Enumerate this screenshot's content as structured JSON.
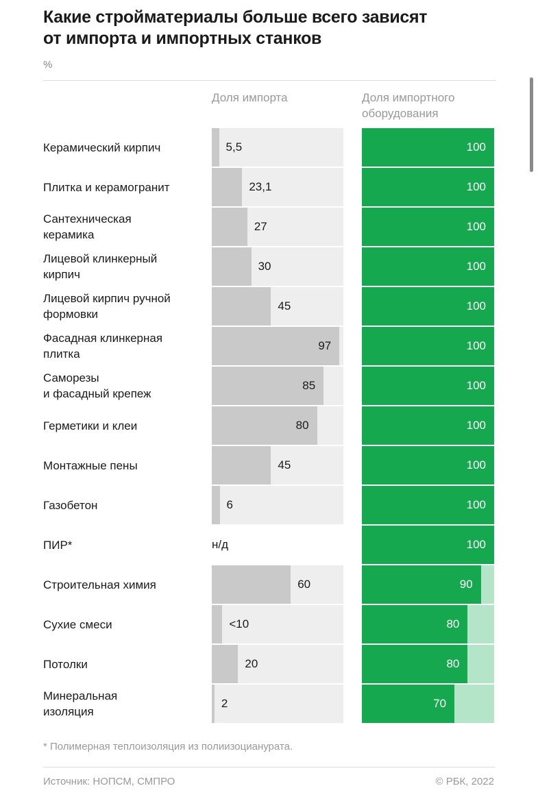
{
  "chart_data": {
    "type": "bar",
    "orientation": "horizontal",
    "title": "Какие стройматериалы больше всего зависят\nот импорта и импортных станков",
    "subtitle": "%",
    "categories": [
      "Керамический кирпич",
      "Плитка и керамогранит",
      "Сантехническая\nкерамика",
      "Лицевой клинкерный\nкирпич",
      "Лицевой кирпич ручной\nформовки",
      "Фасадная клинкерная\nплитка",
      "Саморезы\nи фасадный крепеж",
      "Герметики и клеи",
      "Монтажные пены",
      "Газобетон",
      "ПИР*",
      "Строительная химия",
      "Сухие смеси",
      "Потолки",
      "Минеральная\nизоляция"
    ],
    "series": [
      {
        "name": "Доля импорта",
        "color": "#c9c9c9",
        "background": "#eeeeee",
        "values": [
          5.5,
          23.1,
          27,
          30,
          45,
          97,
          85,
          80,
          45,
          6,
          null,
          60,
          8,
          20,
          2
        ],
        "value_labels": [
          "5,5",
          "23,1",
          "27",
          "30",
          "45",
          "97",
          "85",
          "80",
          "45",
          "6",
          "н/д",
          "60",
          "<10",
          "20",
          "2"
        ]
      },
      {
        "name": "Доля импортного\nоборудования",
        "color": "#16a84f",
        "background": "#b5e5c9",
        "values": [
          100,
          100,
          100,
          100,
          100,
          100,
          100,
          100,
          100,
          100,
          100,
          90,
          80,
          80,
          70
        ]
      }
    ],
    "xlim": [
      0,
      100
    ]
  },
  "footer": {
    "footnote": "* Полимерная теплоизоляция из полиизоцианурата.",
    "source": "Источник: НОПСМ, СМПРО",
    "copyright": "© РБК, 2022"
  }
}
